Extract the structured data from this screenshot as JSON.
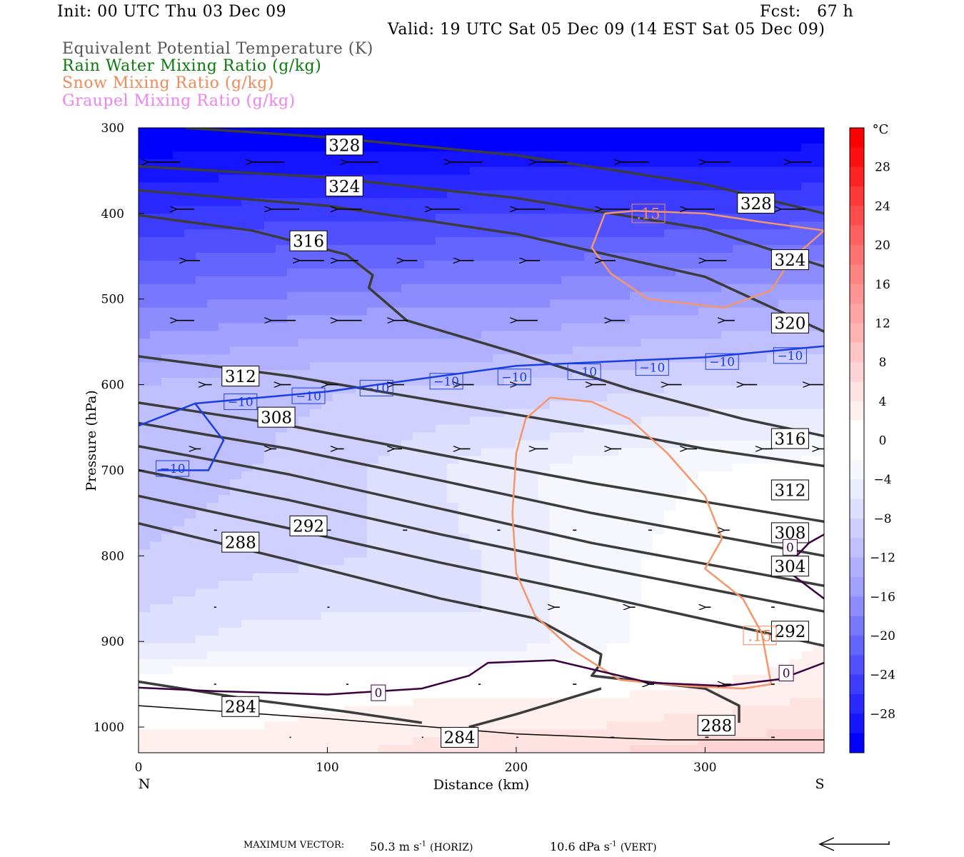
{
  "header": {
    "init": "Init: 00 UTC Thu 03 Dec 09",
    "fcst": "Fcst:   67 h",
    "valid": "Valid: 19 UTC Sat 05 Dec 09 (14 EST Sat 05 Dec 09)",
    "fields": [
      {
        "label": "Equivalent Potential Temperature (K)",
        "color": "#555555"
      },
      {
        "label": "Rain Water Mixing Ratio (g/kg)",
        "color": "#008000"
      },
      {
        "label": "Snow Mixing Ratio (g/kg)",
        "color": "#f08a5a"
      },
      {
        "label": "Graupel Mixing Ratio (g/kg)",
        "color": "#ee82ee"
      }
    ]
  },
  "footer": {
    "max_vector_label": "MAXIMUM VECTOR:",
    "horiz_value": "50.3 m s",
    "horiz_unit": "(HORIZ)",
    "vert_value": "10.6 dPa s",
    "vert_unit": "(VERT)",
    "exp": "-1"
  },
  "chart_data": {
    "type": "heatmap",
    "xlabel": "Distance (km)",
    "ylabel": "Pressure (hPa)",
    "xlim": [
      0,
      363
    ],
    "ylim": [
      1030,
      300
    ],
    "x_ticks": [
      "0",
      "100",
      "200",
      "300"
    ],
    "x_tick_values": [
      0,
      100,
      200,
      300
    ],
    "y_ticks": [
      "300",
      "400",
      "500",
      "600",
      "700",
      "800",
      "900",
      "1000"
    ],
    "y_tick_values": [
      300,
      400,
      500,
      600,
      700,
      800,
      900,
      1000
    ],
    "x_end_labels": {
      "left": "N",
      "right": "S"
    },
    "colorbar": {
      "unit": "°C",
      "tick_labels": [
        "28",
        "24",
        "20",
        "16",
        "12",
        "8",
        "4",
        "0",
        "−4",
        "−8",
        "−12",
        "−16",
        "−20",
        "−24",
        "−28"
      ],
      "tick_values": [
        28,
        24,
        20,
        16,
        12,
        8,
        4,
        0,
        -4,
        -8,
        -12,
        -16,
        -20,
        -24,
        -28
      ],
      "range": [
        -32,
        32
      ],
      "colors_cold": [
        "#0000ff",
        "#1414ff",
        "#2828ff",
        "#3c3cff",
        "#5050ff",
        "#6464ff",
        "#7878ff",
        "#8c8cff",
        "#a0a0ff",
        "#b0b0ff",
        "#c0c0ff",
        "#d0d0ff",
        "#dedeff",
        "#ececff",
        "#f6f6ff",
        "#ffffff"
      ],
      "colors_warm": [
        "#ffffff",
        "#fff0f0",
        "#ffe2e2",
        "#ffd4d4",
        "#ffc4c4",
        "#ffb4b4",
        "#ffa4a4",
        "#ff9494",
        "#ff8484",
        "#ff7272",
        "#ff6060",
        "#ff4c4c",
        "#ff3838",
        "#ff2424",
        "#ff1010",
        "#ff0000"
      ]
    },
    "temperature_field": {
      "x": [
        0,
        60,
        120,
        180,
        240,
        300,
        363
      ],
      "p": [
        300,
        400,
        500,
        600,
        700,
        800,
        900,
        950,
        1000,
        1030
      ],
      "t": [
        [
          -32,
          -32,
          -32,
          -32,
          -32,
          -32,
          -32
        ],
        [
          -26,
          -25,
          -25,
          -24,
          -24,
          -24,
          -23
        ],
        [
          -19,
          -18,
          -17,
          -17,
          -16,
          -15,
          -14
        ],
        [
          -12,
          -11,
          -10,
          -10,
          -9,
          -8,
          -8
        ],
        [
          -11,
          -10,
          -8,
          -5,
          -3,
          -2,
          -1
        ],
        [
          -10,
          -9,
          -8,
          -6,
          -3,
          -1,
          1
        ],
        [
          -7,
          -5,
          -5,
          -6,
          -3,
          0,
          2
        ],
        [
          0,
          0,
          1,
          1,
          1,
          2,
          3
        ],
        [
          2,
          2,
          3,
          4,
          4,
          5,
          6
        ],
        [
          3,
          3,
          4,
          5,
          6,
          7,
          8
        ]
      ]
    },
    "theta_e_contours": [
      {
        "level": 328,
        "points": [
          [
            25,
            300
          ],
          [
            100,
            311
          ],
          [
            200,
            332
          ],
          [
            300,
            366
          ],
          [
            363,
            400
          ]
        ],
        "labels": [
          {
            "x": 109,
            "p": 320
          },
          {
            "x": 327,
            "p": 388
          }
        ]
      },
      {
        "level": 324,
        "points": [
          [
            0,
            345
          ],
          [
            100,
            358
          ],
          [
            200,
            382
          ],
          [
            300,
            418
          ],
          [
            363,
            462
          ]
        ],
        "labels": [
          {
            "x": 109,
            "p": 368
          },
          {
            "x": 345,
            "p": 454
          }
        ]
      },
      {
        "level": 320,
        "points": [
          [
            0,
            373
          ],
          [
            100,
            391
          ],
          [
            200,
            424
          ],
          [
            300,
            474
          ],
          [
            363,
            538
          ]
        ],
        "labels": [
          {
            "x": 345,
            "p": 528
          }
        ]
      },
      {
        "level": 316,
        "points": [
          [
            0,
            402
          ],
          [
            60,
            420
          ],
          [
            110,
            448
          ],
          [
            124,
            472
          ],
          [
            122,
            487
          ],
          [
            142,
            525
          ],
          [
            200,
            563
          ],
          [
            260,
            605
          ],
          [
            320,
            640
          ],
          [
            363,
            660
          ]
        ],
        "labels": [
          {
            "x": 90,
            "p": 432
          },
          {
            "x": 345,
            "p": 663
          }
        ]
      },
      {
        "level": 312,
        "points": [
          [
            0,
            567
          ],
          [
            80,
            590
          ],
          [
            160,
            620
          ],
          [
            240,
            650
          ],
          [
            300,
            675
          ],
          [
            363,
            695
          ]
        ],
        "labels": [
          {
            "x": 54,
            "p": 590
          },
          {
            "x": 345,
            "p": 723
          }
        ]
      },
      {
        "level": 308,
        "points": [
          [
            0,
            621
          ],
          [
            80,
            648
          ],
          [
            160,
            682
          ],
          [
            240,
            715
          ],
          [
            363,
            760
          ]
        ],
        "labels": [
          {
            "x": 73,
            "p": 638
          },
          {
            "x": 345,
            "p": 773
          }
        ]
      },
      {
        "level": 304,
        "points": [
          [
            0,
            645
          ],
          [
            80,
            675
          ],
          [
            160,
            712
          ],
          [
            240,
            750
          ],
          [
            363,
            800
          ]
        ],
        "labels": [
          {
            "x": 345,
            "p": 812
          }
        ]
      },
      {
        "level": 300,
        "points": [
          [
            0,
            672
          ],
          [
            80,
            705
          ],
          [
            160,
            745
          ],
          [
            240,
            785
          ],
          [
            363,
            835
          ]
        ],
        "labels": []
      },
      {
        "level": 296,
        "points": [
          [
            0,
            700
          ],
          [
            80,
            735
          ],
          [
            160,
            775
          ],
          [
            240,
            812
          ],
          [
            363,
            865
          ]
        ],
        "labels": []
      },
      {
        "level": 292,
        "points": [
          [
            0,
            730
          ],
          [
            80,
            768
          ],
          [
            160,
            808
          ],
          [
            240,
            845
          ],
          [
            363,
            905
          ]
        ],
        "labels": [
          {
            "x": 90,
            "p": 765
          },
          {
            "x": 345,
            "p": 888
          }
        ]
      },
      {
        "level": 288,
        "points": [
          [
            0,
            762
          ],
          [
            80,
            805
          ],
          [
            160,
            850
          ],
          [
            210,
            873
          ],
          [
            245,
            915
          ],
          [
            244,
            928
          ],
          [
            240,
            940
          ],
          [
            300,
            955
          ],
          [
            318,
            975
          ],
          [
            318,
            995
          ]
        ],
        "labels": [
          {
            "x": 54,
            "p": 784
          },
          {
            "x": 306,
            "p": 998
          }
        ]
      },
      {
        "level": 284,
        "points": [
          [
            0,
            947
          ],
          [
            60,
            968
          ],
          [
            110,
            982
          ],
          [
            150,
            995
          ]
        ],
        "labels": [
          {
            "x": 54,
            "p": 976
          },
          {
            "x": 170,
            "p": 1012
          }
        ]
      },
      {
        "level": 284,
        "points": [
          [
            175,
            1000
          ],
          [
            200,
            985
          ],
          [
            245,
            955
          ]
        ],
        "labels": []
      }
    ],
    "theta_e_surface": {
      "points": [
        [
          0,
          975
        ],
        [
          100,
          990
        ],
        [
          200,
          1008
        ],
        [
          280,
          1015
        ],
        [
          363,
          1015
        ]
      ]
    },
    "isotherm_minus10": {
      "color": "#1a3ee6",
      "label": "−10",
      "points": [
        [
          0,
          648
        ],
        [
          30,
          622
        ],
        [
          100,
          608
        ],
        [
          200,
          578
        ],
        [
          300,
          568
        ],
        [
          363,
          555
        ]
      ],
      "pocket": [
        [
          30,
          622
        ],
        [
          45,
          665
        ],
        [
          37,
          700
        ],
        [
          10,
          700
        ]
      ],
      "label_positions": [
        {
          "x": 54,
          "p": 620
        },
        {
          "x": 90,
          "p": 613
        },
        {
          "x": 126,
          "p": 604
        },
        {
          "x": 163,
          "p": 596
        },
        {
          "x": 199,
          "p": 591
        },
        {
          "x": 236,
          "p": 585
        },
        {
          "x": 272,
          "p": 580
        },
        {
          "x": 309,
          "p": 573
        },
        {
          "x": 345,
          "p": 566
        },
        {
          "x": 18,
          "p": 698
        }
      ]
    },
    "isotherm_zero": {
      "color": "#3a0040",
      "label": "0",
      "points": [
        [
          0,
          954
        ],
        [
          40,
          958
        ],
        [
          100,
          962
        ],
        [
          150,
          955
        ],
        [
          175,
          940
        ],
        [
          185,
          925
        ],
        [
          220,
          922
        ],
        [
          245,
          935
        ],
        [
          270,
          948
        ],
        [
          310,
          952
        ],
        [
          340,
          944
        ],
        [
          363,
          925
        ]
      ],
      "label_positions": [
        {
          "x": 127,
          "p": 960
        },
        {
          "x": 343,
          "p": 937
        },
        {
          "x": 345,
          "p": 790
        }
      ],
      "corner": [
        [
          363,
          775
        ],
        [
          355,
          785
        ],
        [
          342,
          815
        ],
        [
          363,
          850
        ]
      ]
    },
    "snow_contours": [
      {
        "label": ".15",
        "points": [
          [
            247,
            400
          ],
          [
            263,
            397
          ],
          [
            300,
            400
          ],
          [
            330,
            410
          ],
          [
            363,
            420
          ],
          [
            345,
            455
          ],
          [
            335,
            490
          ],
          [
            310,
            510
          ],
          [
            270,
            500
          ],
          [
            250,
            470
          ],
          [
            240,
            440
          ],
          [
            247,
            400
          ]
        ],
        "label_pos": {
          "x": 270,
          "p": 400
        }
      },
      {
        "label": ".15",
        "points": [
          [
            218,
            615
          ],
          [
            240,
            620
          ],
          [
            260,
            640
          ],
          [
            280,
            680
          ],
          [
            300,
            730
          ],
          [
            309,
            780
          ],
          [
            300,
            815
          ],
          [
            320,
            850
          ],
          [
            330,
            890
          ],
          [
            335,
            950
          ],
          [
            320,
            955
          ],
          [
            290,
            952
          ],
          [
            255,
            945
          ],
          [
            230,
            910
          ],
          [
            210,
            870
          ],
          [
            200,
            820
          ],
          [
            198,
            750
          ],
          [
            200,
            680
          ],
          [
            205,
            640
          ],
          [
            218,
            615
          ]
        ],
        "label_pos": {
          "x": 329,
          "p": 893
        }
      }
    ],
    "wind_vectors": [
      {
        "p": 340,
        "x": [
          5,
          60,
          110,
          165,
          210,
          255,
          300,
          345
        ],
        "len": [
          45,
          45,
          45,
          45,
          45,
          40,
          35,
          30
        ]
      },
      {
        "p": 395,
        "x": [
          20,
          70,
          105,
          155,
          200,
          245,
          290,
          340
        ],
        "len": [
          25,
          40,
          35,
          40,
          40,
          40,
          40,
          35
        ]
      },
      {
        "p": 455,
        "x": [
          25,
          85,
          105,
          140,
          170,
          205,
          245,
          300,
          340
        ],
        "len": [
          20,
          35,
          30,
          20,
          20,
          20,
          20,
          30,
          25
        ]
      },
      {
        "p": 525,
        "x": [
          20,
          70,
          105,
          135,
          200,
          250,
          310,
          345
        ],
        "len": [
          25,
          35,
          35,
          20,
          30,
          20,
          15,
          10
        ]
      },
      {
        "p": 600,
        "x": [
          35,
          75,
          100,
          135,
          170,
          200,
          240,
          280,
          320,
          355
        ],
        "len": [
          10,
          15,
          15,
          15,
          20,
          20,
          20,
          20,
          20,
          20
        ]
      },
      {
        "p": 675,
        "x": [
          30,
          70,
          105,
          135,
          170,
          210,
          250,
          290,
          330,
          360
        ],
        "len": [
          8,
          8,
          10,
          12,
          15,
          18,
          15,
          15,
          15,
          15
        ]
      },
      {
        "p": 770,
        "x": [
          40,
          100,
          140,
          190,
          230,
          270,
          310,
          350
        ],
        "len": [
          4,
          5,
          6,
          4,
          5,
          5,
          8,
          8
        ]
      },
      {
        "p": 860,
        "x": [
          40,
          100,
          180,
          220,
          260,
          300,
          335
        ],
        "len": [
          3,
          3,
          5,
          8,
          8,
          8,
          5
        ]
      },
      {
        "p": 950,
        "x": [
          40,
          110,
          180,
          230,
          270,
          310,
          335
        ],
        "len": [
          3,
          3,
          3,
          5,
          8,
          10,
          5
        ]
      },
      {
        "p": 1012,
        "x": [
          80,
          150,
          200,
          250,
          300,
          335
        ],
        "len": [
          2,
          2,
          3,
          5,
          5,
          5
        ]
      }
    ]
  }
}
